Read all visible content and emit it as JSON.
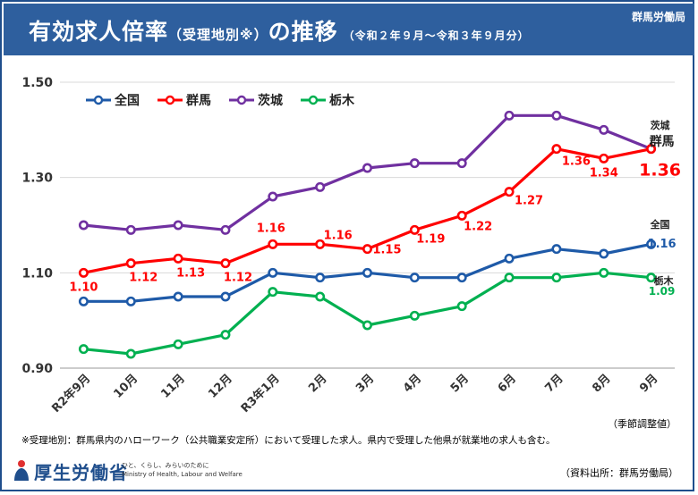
{
  "header": {
    "title_main": "有効求人倍率",
    "title_sub": "（受理地別※）",
    "title_end": "の推移",
    "period": "（令和２年９月～令和３年９月分）",
    "org": "群馬労働局"
  },
  "chart_data": {
    "type": "line",
    "title": "有効求人倍率（受理地別※）の推移",
    "categories": [
      "R2年9月",
      "10月",
      "11月",
      "12月",
      "R3年1月",
      "2月",
      "3月",
      "4月",
      "5月",
      "6月",
      "7月",
      "8月",
      "9月"
    ],
    "ylim": [
      0.9,
      1.5
    ],
    "yticks": [
      "0.90",
      "1.10",
      "1.30",
      "1.50"
    ],
    "grid": true,
    "legend_position": "top-left",
    "series": [
      {
        "name": "全国",
        "color": "#1e5aa8",
        "values": [
          1.04,
          1.04,
          1.05,
          1.05,
          1.1,
          1.09,
          1.1,
          1.09,
          1.09,
          1.13,
          1.15,
          1.14,
          1.16
        ]
      },
      {
        "name": "群馬",
        "color": "#ff0000",
        "values": [
          1.1,
          1.12,
          1.13,
          1.12,
          1.16,
          1.16,
          1.15,
          1.19,
          1.22,
          1.27,
          1.36,
          1.34,
          1.36
        ]
      },
      {
        "name": "茨城",
        "color": "#7030a0",
        "values": [
          1.2,
          1.19,
          1.2,
          1.19,
          1.26,
          1.28,
          1.32,
          1.33,
          1.33,
          1.43,
          1.43,
          1.4,
          1.36
        ]
      },
      {
        "name": "栃木",
        "color": "#00b050",
        "values": [
          0.94,
          0.93,
          0.95,
          0.97,
          1.06,
          1.05,
          0.99,
          1.01,
          1.03,
          1.09,
          1.09,
          1.1,
          1.09
        ]
      }
    ],
    "data_labels": {
      "gunma": [
        "1.10",
        "1.12",
        "1.13",
        "1.12",
        "1.16",
        "1.16",
        "1.15",
        "1.19",
        "1.22",
        "1.27",
        "1.36",
        "1.34",
        "1.36"
      ],
      "national_last": "1.16",
      "tochigi_last": "1.09"
    },
    "end_labels": {
      "ibaraki": "茨城",
      "gunma": "群馬",
      "national": "全国",
      "tochigi": "栃木"
    }
  },
  "seasonal_note": "（季節調整値）",
  "footnote": "※受理地別：群馬県内のハローワーク（公共職業安定所）において受理した求人。県内で受理した他県が就業地の求人も含む。",
  "logo": {
    "name": "厚生労働省",
    "tagline": "ひと、くらし、みらいのために",
    "english": "Ministry of Health, Labour and Welfare"
  },
  "source": "（資料出所：群馬労働局）"
}
